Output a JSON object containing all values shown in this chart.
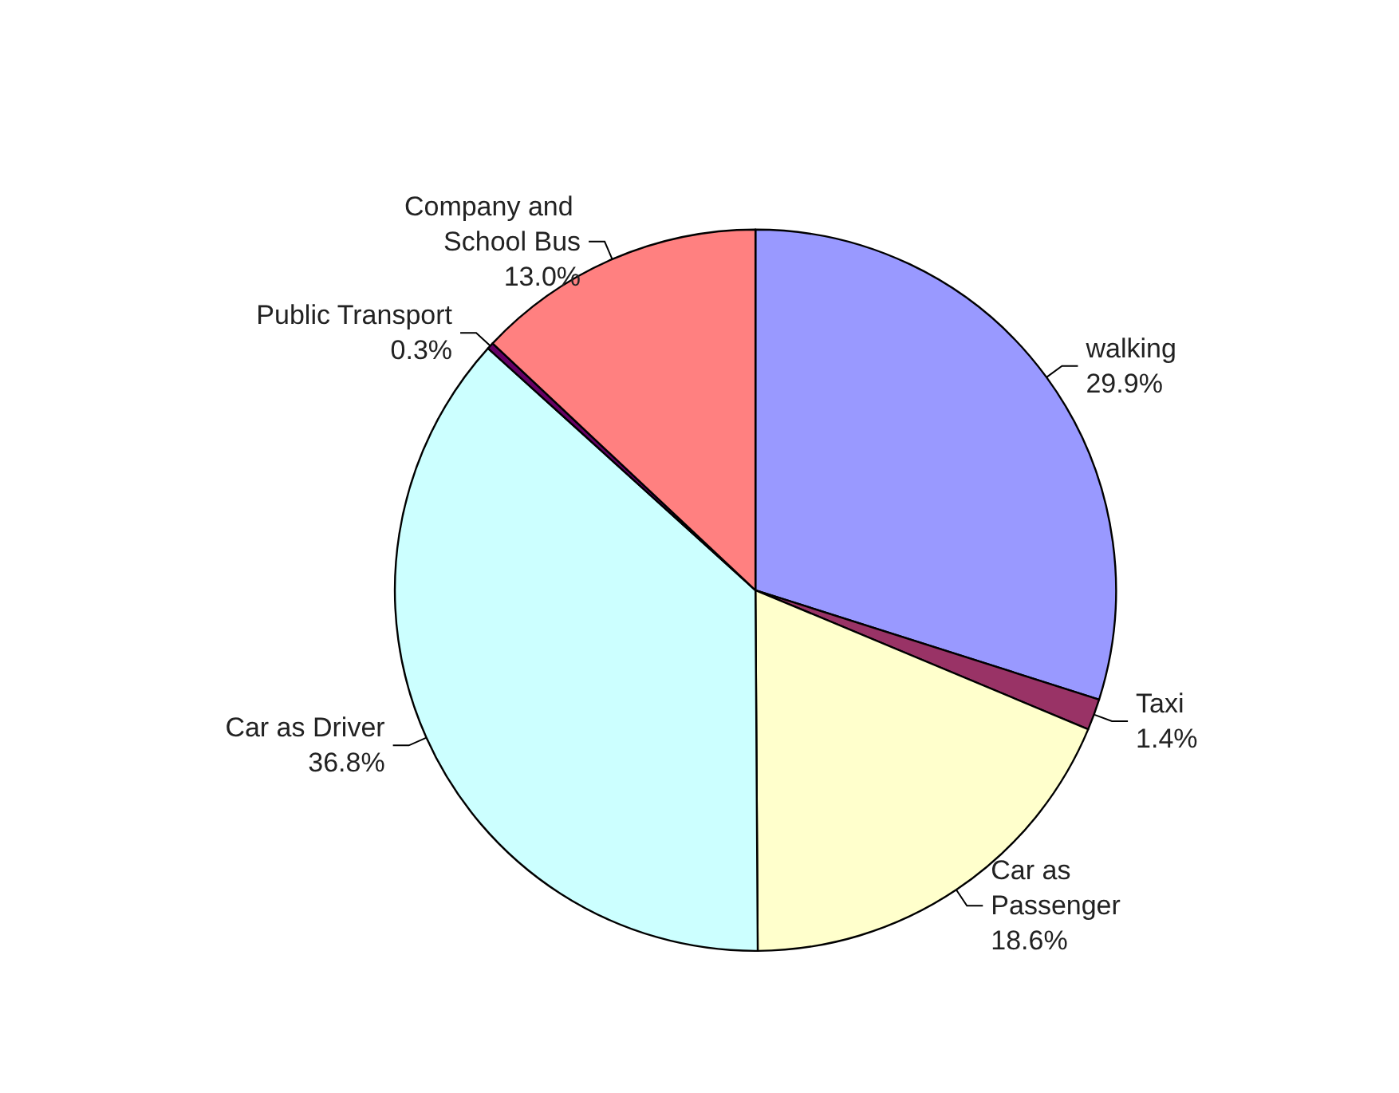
{
  "chart_data": {
    "type": "pie",
    "categories": [
      "walking",
      "Taxi",
      "Car as Passenger",
      "Car as Driver",
      "Public Transport",
      "Company and School Bus"
    ],
    "values": [
      29.9,
      1.4,
      18.6,
      36.8,
      0.3,
      13.0
    ],
    "value_labels": [
      "29.9%",
      "1.4%",
      "18.6%",
      "36.8%",
      "0.3%",
      "13.0%"
    ],
    "colors": [
      "#9999ff",
      "#993366",
      "#ffffcc",
      "#ccffff",
      "#660066",
      "#ff8080"
    ],
    "legend": false
  }
}
